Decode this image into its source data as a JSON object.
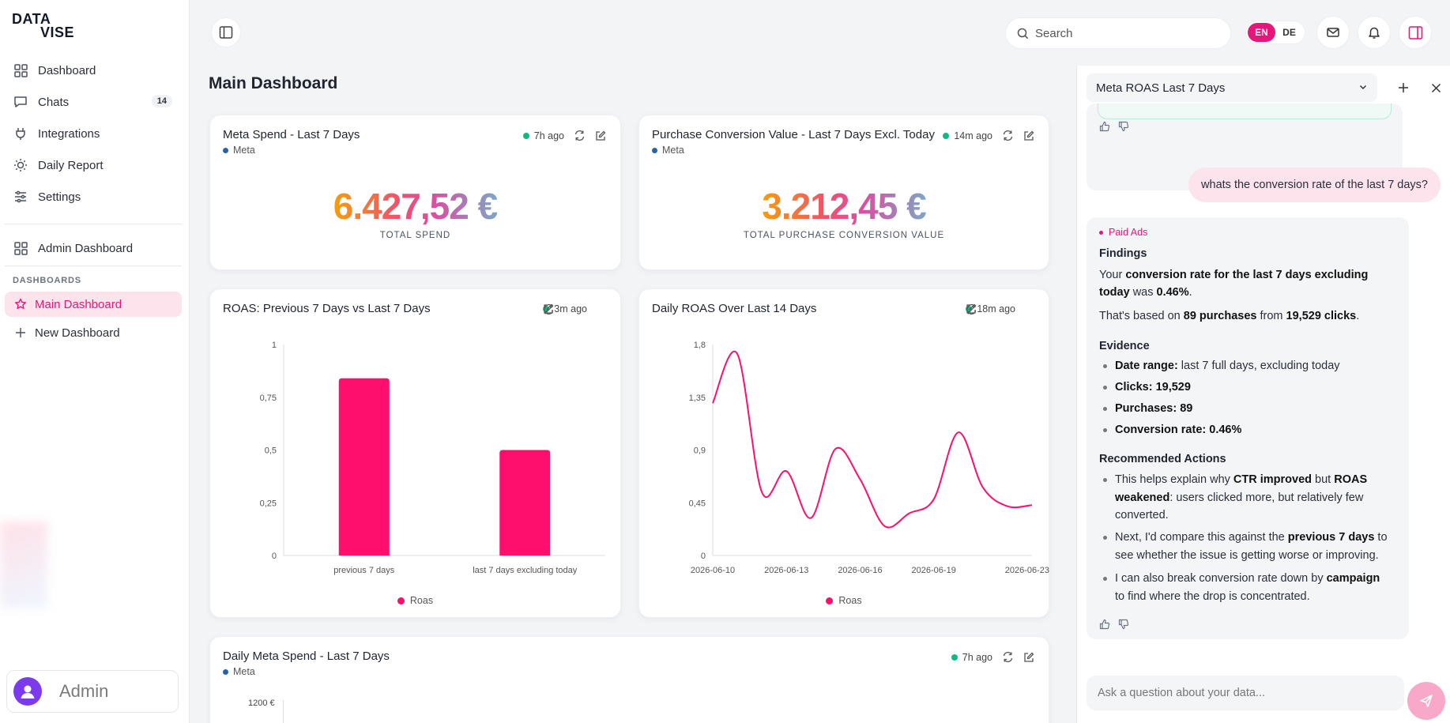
{
  "brand": {
    "line1": "DATA",
    "line2": "VISE"
  },
  "sidebar": {
    "items": [
      {
        "label": "Dashboard",
        "icon": "grid-icon"
      },
      {
        "label": "Chats",
        "icon": "chat-icon",
        "count": "14"
      },
      {
        "label": "Integrations",
        "icon": "plug-icon"
      },
      {
        "label": "Daily Report",
        "icon": "sun-icon"
      },
      {
        "label": "Settings",
        "icon": "sliders-icon"
      }
    ],
    "admin_dashboard": "Admin Dashboard",
    "section_label": "DASHBOARDS",
    "main_dashboard": "Main Dashboard",
    "new_dashboard": "New Dashboard",
    "user": "Admin"
  },
  "topbar": {
    "search_placeholder": "Search",
    "lang_en": "EN",
    "lang_de": "DE"
  },
  "page": {
    "title": "Main Dashboard"
  },
  "cards": {
    "spend": {
      "title": "Meta Spend - Last 7 Days",
      "source": "Meta",
      "updated": "7h ago",
      "value": "6.427,52 €",
      "label": "TOTAL SPEND"
    },
    "pcv": {
      "title": "Purchase Conversion Value - Last 7 Days Excl. Today",
      "source": "Meta",
      "updated": "14m ago",
      "value": "3.212,45 €",
      "label": "TOTAL PURCHASE CONVERSION VALUE"
    },
    "roas_compare": {
      "title": "ROAS: Previous 7 Days vs Last 7 Days",
      "updated": "3m ago",
      "legend": "Roas"
    },
    "roas_daily": {
      "title": "Daily ROAS Over Last 14 Days",
      "updated": "18m ago",
      "legend": "Roas"
    },
    "daily_spend": {
      "title": "Daily Meta Spend - Last 7 Days",
      "source": "Meta",
      "updated": "7h ago",
      "y_top": "1200 €"
    }
  },
  "chart_data": [
    {
      "type": "bar",
      "categories": [
        "previous 7 days",
        "last 7 days excluding today"
      ],
      "series": [
        {
          "name": "Roas",
          "values": [
            0.84,
            0.5
          ]
        }
      ],
      "ylim": [
        0,
        1
      ],
      "yticks": [
        "0",
        "0,25",
        "0,5",
        "0,75",
        "1"
      ],
      "color": "#ff0f6d"
    },
    {
      "type": "line",
      "x": [
        "2026-06-10",
        "2026-06-11",
        "2026-06-12",
        "2026-06-13",
        "2026-06-14",
        "2026-06-15",
        "2026-06-16",
        "2026-06-17",
        "2026-06-18",
        "2026-06-19",
        "2026-06-20",
        "2026-06-21",
        "2026-06-22",
        "2026-06-23"
      ],
      "xticks": [
        "2026-06-10",
        "2026-06-13",
        "2026-06-16",
        "2026-06-19",
        "2026-06-23"
      ],
      "series": [
        {
          "name": "Roas",
          "values": [
            1.3,
            1.72,
            0.54,
            0.72,
            0.32,
            0.91,
            0.65,
            0.25,
            0.36,
            0.48,
            1.05,
            0.58,
            0.42,
            0.43
          ]
        }
      ],
      "ylim": [
        0,
        1.8
      ],
      "yticks": [
        "0",
        "0,45",
        "0,9",
        "1,35",
        "1,8"
      ],
      "color": "#ff0f6d"
    }
  ],
  "chat": {
    "selected": "Meta ROAS Last 7 Days",
    "user_message": "whats the conversion rate of the last 7 days?",
    "tag": "Paid Ads",
    "findings_h": "Findings",
    "f1_a": "Your ",
    "f1_b": "conversion rate for the last 7 days excluding today",
    "f1_c": " was ",
    "f1_d": "0.46%",
    "f1_e": ".",
    "f2_a": "That's based on ",
    "f2_b": "89 purchases",
    "f2_c": " from ",
    "f2_d": "19,529 clicks",
    "f2_e": ".",
    "evidence_h": "Evidence",
    "ev1_k": "Date range:",
    "ev1_v": " last 7 full days, excluding today",
    "ev2": "Clicks: 19,529",
    "ev3": "Purchases: 89",
    "ev4": "Conversion rate: 0.46%",
    "actions_h": "Recommended Actions",
    "a1_a": "This helps explain why ",
    "a1_b": "CTR improved",
    "a1_c": " but ",
    "a1_d": "ROAS weakened",
    "a1_e": ": users clicked more, but relatively few converted.",
    "a2_a": "Next, I'd compare this against the ",
    "a2_b": "previous 7 days",
    "a2_c": " to see whether the issue is getting worse or improving.",
    "a3_a": "I can also break conversion rate down by ",
    "a3_b": "campaign",
    "a3_c": " to find where the drop is concentrated.",
    "input_placeholder": "Ask a question about your data..."
  },
  "colors": {
    "accent": "#e5177a",
    "series": "#ff0f6d",
    "live": "#10b981",
    "meta": "#2563a6"
  }
}
